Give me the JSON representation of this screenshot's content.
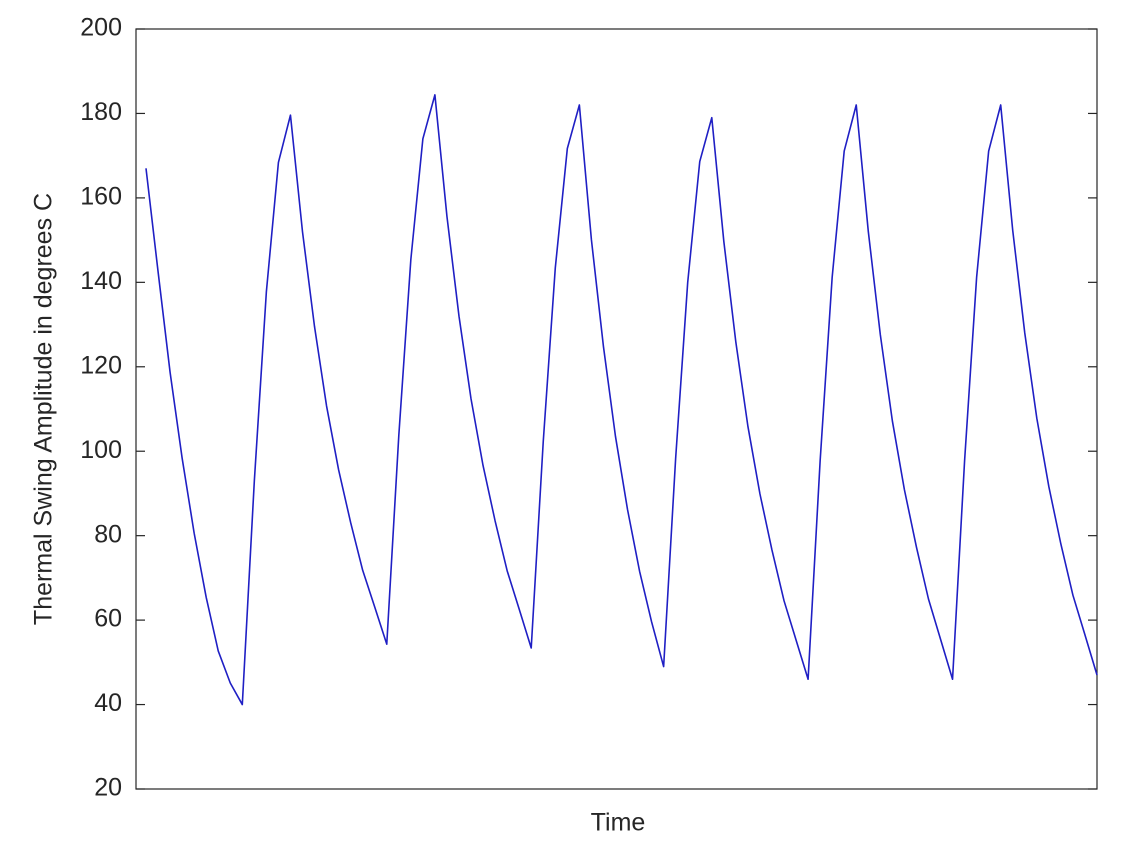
{
  "chart_data": {
    "type": "line",
    "xlabel": "Time",
    "ylabel": "Thermal Swing Amplitude in degrees C",
    "categories": [
      null,
      null,
      null,
      null,
      null,
      null,
      null,
      null,
      null,
      null,
      null,
      null,
      null,
      null,
      null,
      null,
      null,
      null,
      null,
      null,
      null,
      null,
      null,
      null,
      null,
      null,
      null,
      null,
      null,
      null,
      null,
      null,
      null,
      null,
      null,
      null,
      null,
      null,
      null,
      null,
      null,
      null,
      null,
      null,
      null,
      null,
      null,
      null,
      null,
      null,
      null,
      null,
      null,
      null,
      null,
      null,
      null,
      null,
      null,
      null,
      null,
      null,
      null,
      null,
      null,
      null,
      null,
      null,
      null,
      null,
      null,
      null,
      null,
      null,
      null,
      null,
      null,
      null,
      null,
      null
    ],
    "values": [
      167,
      142.6,
      118.7,
      98.4,
      80.6,
      65.4,
      52.7,
      45.1,
      40,
      93,
      137.8,
      168.4,
      179.6,
      152,
      129.5,
      110.7,
      95.6,
      83.1,
      71.8,
      63.1,
      54.3,
      103.7,
      145.4,
      174,
      184.4,
      155.6,
      132,
      112.4,
      96.6,
      83.5,
      71.7,
      62.6,
      53.4,
      102.3,
      143.4,
      171.7,
      182,
      150.1,
      124.8,
      103.5,
      86.2,
      71.6,
      59.6,
      49,
      98.4,
      140,
      168.6,
      179,
      149.7,
      125.8,
      105.9,
      89.9,
      76.6,
      64.6,
      55.3,
      46,
      97.7,
      141.2,
      171.1,
      182,
      152.1,
      127.6,
      107.2,
      90.9,
      77.3,
      65,
      55.5,
      46,
      97.7,
      141.2,
      171.1,
      182,
      152.3,
      128,
      107.8,
      91.6,
      78,
      65.9,
      56.5,
      47
    ],
    "color": "#1f1fc4",
    "ylim": [
      20,
      200
    ],
    "yticks": [
      20,
      40,
      60,
      80,
      100,
      120,
      140,
      160,
      180,
      200
    ]
  }
}
